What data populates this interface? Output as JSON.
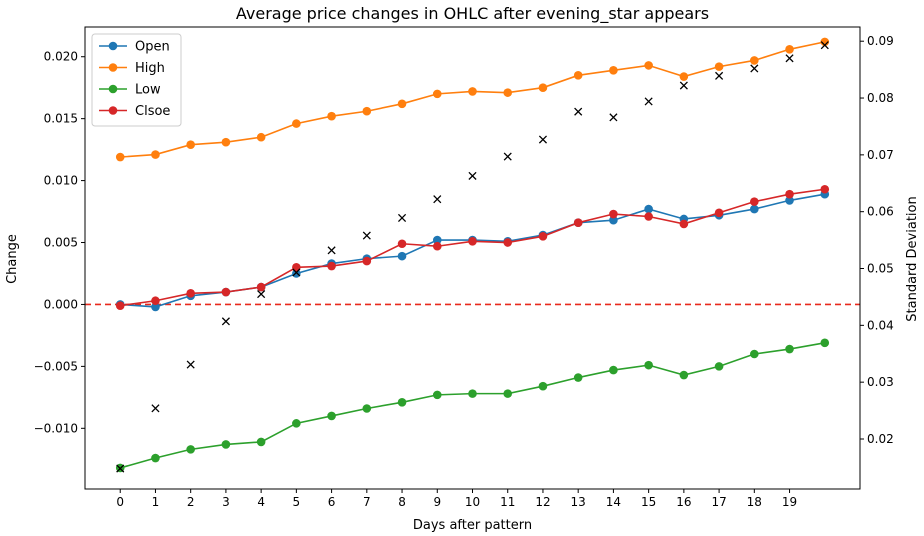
{
  "chart_data": {
    "type": "line",
    "title": "Average price changes in OHLC after evening_star appears",
    "xlabel": "Days after pattern",
    "ylabel_left": "Change",
    "ylabel_right": "Standard Deviation",
    "x": [
      0,
      1,
      2,
      3,
      4,
      5,
      6,
      7,
      8,
      9,
      10,
      11,
      12,
      13,
      14,
      15,
      16,
      17,
      18,
      19,
      20
    ],
    "x_ticks": [
      "0",
      "1",
      "2",
      "3",
      "4",
      "5",
      "6",
      "7",
      "8",
      "9",
      "10",
      "11",
      "12",
      "13",
      "14",
      "15",
      "16",
      "17",
      "18",
      "19"
    ],
    "xlim": [
      -1,
      21
    ],
    "ylim_left": [
      -0.0149,
      0.0224
    ],
    "yticks_left": [
      "−0.010",
      "−0.005",
      "0.000",
      "0.005",
      "0.010",
      "0.015",
      "0.020"
    ],
    "yticks_left_values": [
      -0.01,
      -0.005,
      0.0,
      0.005,
      0.01,
      0.015,
      0.02
    ],
    "ylim_right": [
      0.0112,
      0.0925
    ],
    "yticks_right": [
      "0.02",
      "0.03",
      "0.04",
      "0.05",
      "0.06",
      "0.07",
      "0.08",
      "0.09"
    ],
    "yticks_right_values": [
      0.02,
      0.03,
      0.04,
      0.05,
      0.06,
      0.07,
      0.08,
      0.09
    ],
    "reference_line": {
      "y": 0.0,
      "color": "#e8291c",
      "style": "dashed"
    },
    "legend_position": "top-left",
    "grid": false,
    "series": [
      {
        "name": "Open",
        "color": "#1f77b4",
        "values": [
          0.0,
          -0.0002,
          0.0007,
          0.001,
          0.0014,
          0.0025,
          0.0033,
          0.0037,
          0.0039,
          0.0052,
          0.0052,
          0.0051,
          0.0056,
          0.0066,
          0.0068,
          0.0077,
          0.0069,
          0.0072,
          0.0077,
          0.0084,
          0.0089
        ]
      },
      {
        "name": "High",
        "color": "#ff7f0e",
        "values": [
          0.0119,
          0.0121,
          0.0129,
          0.0131,
          0.0135,
          0.0146,
          0.0152,
          0.0156,
          0.0162,
          0.017,
          0.0172,
          0.0171,
          0.0175,
          0.0185,
          0.0189,
          0.0193,
          0.0184,
          0.0192,
          0.0197,
          0.0206,
          0.0212
        ]
      },
      {
        "name": "Low",
        "color": "#2ca02c",
        "values": [
          -0.0132,
          -0.0124,
          -0.0117,
          -0.0113,
          -0.0111,
          -0.0096,
          -0.009,
          -0.0084,
          -0.0079,
          -0.0073,
          -0.0072,
          -0.0072,
          -0.0066,
          -0.0059,
          -0.0053,
          -0.0049,
          -0.0057,
          -0.005,
          -0.004,
          -0.0036,
          -0.0031
        ]
      },
      {
        "name": "Clsoe",
        "color": "#d62728",
        "values": [
          -0.0001,
          0.0003,
          0.0009,
          0.001,
          0.0014,
          0.003,
          0.0031,
          0.0035,
          0.0049,
          0.0047,
          0.0051,
          0.005,
          0.0055,
          0.0066,
          0.0073,
          0.0071,
          0.0065,
          0.0074,
          0.0083,
          0.0089,
          0.0093
        ]
      }
    ],
    "std_series": {
      "marker": "x",
      "color": "#000000",
      "axis": "right",
      "values": [
        0.0148,
        0.0254,
        0.0331,
        0.0407,
        0.0455,
        0.0493,
        0.0532,
        0.0558,
        0.0589,
        0.0622,
        0.0663,
        0.0697,
        0.0727,
        0.0776,
        0.0766,
        0.0794,
        0.0822,
        0.0839,
        0.0852,
        0.087,
        0.0893
      ]
    }
  }
}
